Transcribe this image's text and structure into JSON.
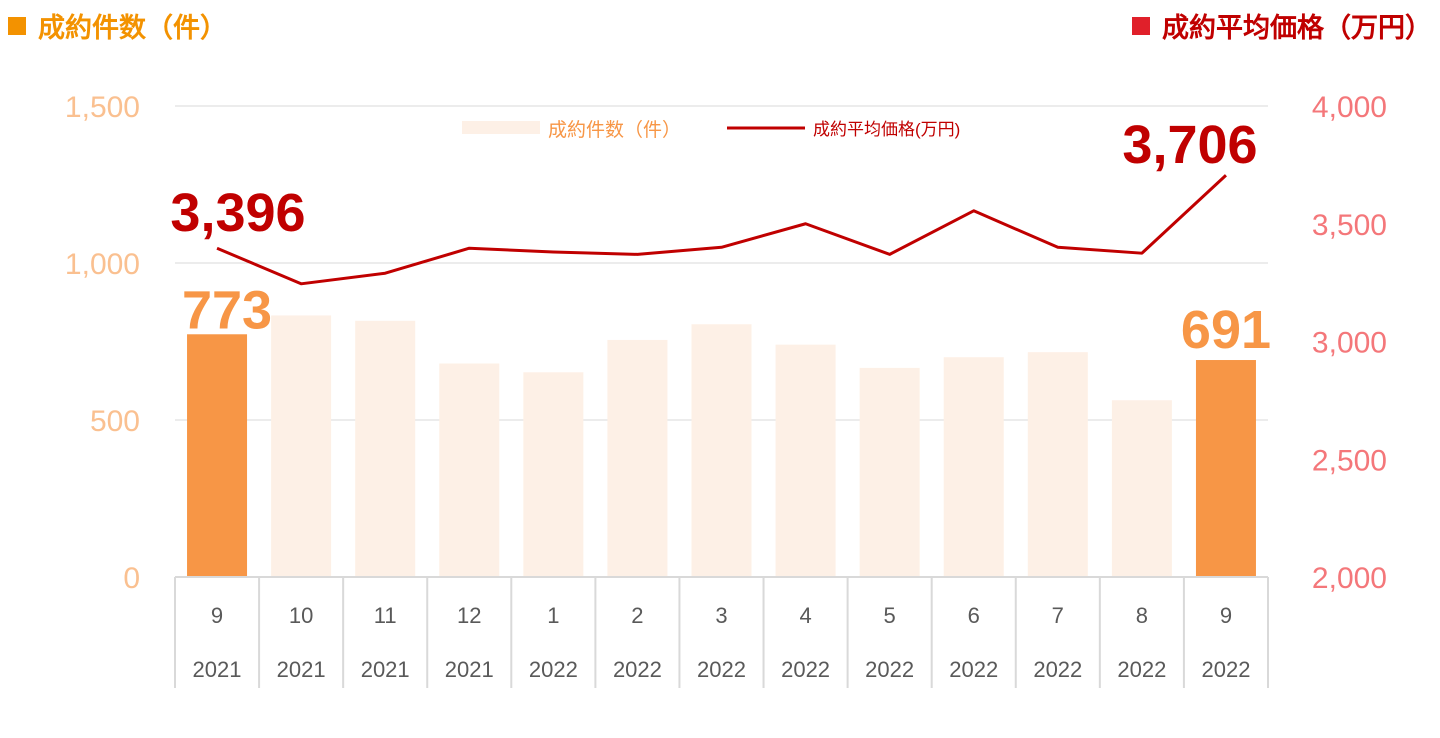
{
  "header": {
    "left_title": "成約件数（件）",
    "right_title": "成約平均価格（万円）"
  },
  "colors": {
    "count_highlight": "#f79646",
    "count_faded": "#fdf0e6",
    "count_axis_text": "#fac090",
    "price_line": "#c00000",
    "price_axis_text": "#f4777a",
    "left_title_color": "#f39200",
    "left_square": "#f39200",
    "right_title_color": "#c00000",
    "right_square": "#e0202a",
    "grid": "#d9d9d9",
    "category_text": "#595959"
  },
  "chart_data": {
    "type": "bar",
    "categories": [
      [
        "9",
        "2021"
      ],
      [
        "10",
        "2021"
      ],
      [
        "11",
        "2021"
      ],
      [
        "12",
        "2021"
      ],
      [
        "1",
        "2022"
      ],
      [
        "2",
        "2022"
      ],
      [
        "3",
        "2022"
      ],
      [
        "4",
        "2022"
      ],
      [
        "5",
        "2022"
      ],
      [
        "6",
        "2022"
      ],
      [
        "7",
        "2022"
      ],
      [
        "8",
        "2022"
      ],
      [
        "9",
        "2022"
      ]
    ],
    "series": [
      {
        "name": "成約件数（件）",
        "type": "bar",
        "axis": "left",
        "values": [
          773,
          833,
          816,
          680,
          652,
          755,
          805,
          740,
          666,
          700,
          716,
          563,
          691
        ],
        "highlighted": [
          0,
          12
        ]
      },
      {
        "name": "成約平均価格(万円)",
        "type": "line",
        "axis": "right",
        "values": [
          3396,
          3245,
          3290,
          3396,
          3380,
          3370,
          3400,
          3500,
          3370,
          3555,
          3400,
          3375,
          3706
        ]
      }
    ],
    "left_axis": {
      "range": [
        0,
        1500
      ],
      "ticks": [
        "0",
        "500",
        "1,000",
        "1,500"
      ],
      "tick_values": [
        0,
        500,
        1000,
        1500
      ]
    },
    "right_axis": {
      "range": [
        2000,
        4000
      ],
      "ticks": [
        "2,000",
        "2,500",
        "3,000",
        "3,500",
        "4,000"
      ],
      "tick_values": [
        2000,
        2500,
        3000,
        3500,
        4000
      ]
    },
    "data_labels": {
      "bar_first": "773",
      "bar_last": "691",
      "line_first": "3,396",
      "line_last": "3,706"
    },
    "legend": {
      "position": "top-center",
      "bar_label": "成約件数（件）",
      "line_label": "成約平均価格(万円)"
    },
    "grid": true
  }
}
